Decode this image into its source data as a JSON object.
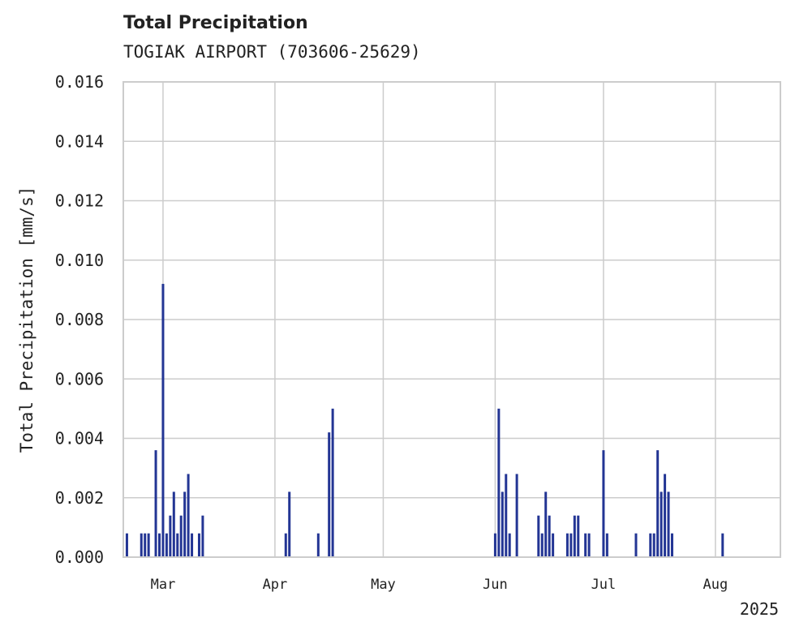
{
  "chart_data": {
    "type": "bar",
    "title": "Total Precipitation",
    "subtitle": "TOGIAK AIRPORT (703606-25629)",
    "ylabel": "Total Precipitation [mm/s]",
    "xlabel": "",
    "ylim": [
      0,
      0.016
    ],
    "xlim": [
      "2025-02-18",
      "2025-08-19"
    ],
    "yticks": [
      "0.000",
      "0.002",
      "0.004",
      "0.006",
      "0.008",
      "0.010",
      "0.012",
      "0.014",
      "0.016"
    ],
    "xticks": [
      {
        "date": "2025-03-01",
        "label": "Mar"
      },
      {
        "date": "2025-04-01",
        "label": "Apr"
      },
      {
        "date": "2025-05-01",
        "label": "May"
      },
      {
        "date": "2025-06-01",
        "label": "Jun"
      },
      {
        "date": "2025-07-01",
        "label": "Jul"
      },
      {
        "date": "2025-08-01",
        "label": "Aug"
      }
    ],
    "year_label": "2025",
    "grid": true,
    "bar_color": "#233594",
    "points": [
      [
        "2025-02-19",
        0.0008
      ],
      [
        "2025-02-23",
        0.0008
      ],
      [
        "2025-02-24",
        0.0008
      ],
      [
        "2025-02-25",
        0.0008
      ],
      [
        "2025-02-27",
        0.0036
      ],
      [
        "2025-02-28",
        0.0008
      ],
      [
        "2025-03-01",
        0.0092
      ],
      [
        "2025-03-02",
        0.0008
      ],
      [
        "2025-03-03",
        0.0014
      ],
      [
        "2025-03-04",
        0.0022
      ],
      [
        "2025-03-05",
        0.0008
      ],
      [
        "2025-03-06",
        0.0014
      ],
      [
        "2025-03-07",
        0.0022
      ],
      [
        "2025-03-08",
        0.0028
      ],
      [
        "2025-03-09",
        0.0008
      ],
      [
        "2025-03-11",
        0.0008
      ],
      [
        "2025-03-12",
        0.0014
      ],
      [
        "2025-04-04",
        0.0008
      ],
      [
        "2025-04-05",
        0.0022
      ],
      [
        "2025-04-13",
        0.0008
      ],
      [
        "2025-04-16",
        0.0042
      ],
      [
        "2025-04-17",
        0.005
      ],
      [
        "2025-06-01",
        0.0008
      ],
      [
        "2025-06-02",
        0.005
      ],
      [
        "2025-06-03",
        0.0022
      ],
      [
        "2025-06-04",
        0.0028
      ],
      [
        "2025-06-05",
        0.0008
      ],
      [
        "2025-06-07",
        0.0028
      ],
      [
        "2025-06-13",
        0.0014
      ],
      [
        "2025-06-14",
        0.0008
      ],
      [
        "2025-06-15",
        0.0022
      ],
      [
        "2025-06-16",
        0.0014
      ],
      [
        "2025-06-17",
        0.0008
      ],
      [
        "2025-06-21",
        0.0008
      ],
      [
        "2025-06-22",
        0.0008
      ],
      [
        "2025-06-23",
        0.0014
      ],
      [
        "2025-06-24",
        0.0014
      ],
      [
        "2025-06-26",
        0.0008
      ],
      [
        "2025-06-27",
        0.0008
      ],
      [
        "2025-07-01",
        0.0036
      ],
      [
        "2025-07-02",
        0.0008
      ],
      [
        "2025-07-10",
        0.0008
      ],
      [
        "2025-07-14",
        0.0008
      ],
      [
        "2025-07-15",
        0.0008
      ],
      [
        "2025-07-16",
        0.0036
      ],
      [
        "2025-07-17",
        0.0022
      ],
      [
        "2025-07-18",
        0.0028
      ],
      [
        "2025-07-19",
        0.0022
      ],
      [
        "2025-07-20",
        0.0008
      ],
      [
        "2025-08-03",
        0.0008
      ]
    ]
  }
}
